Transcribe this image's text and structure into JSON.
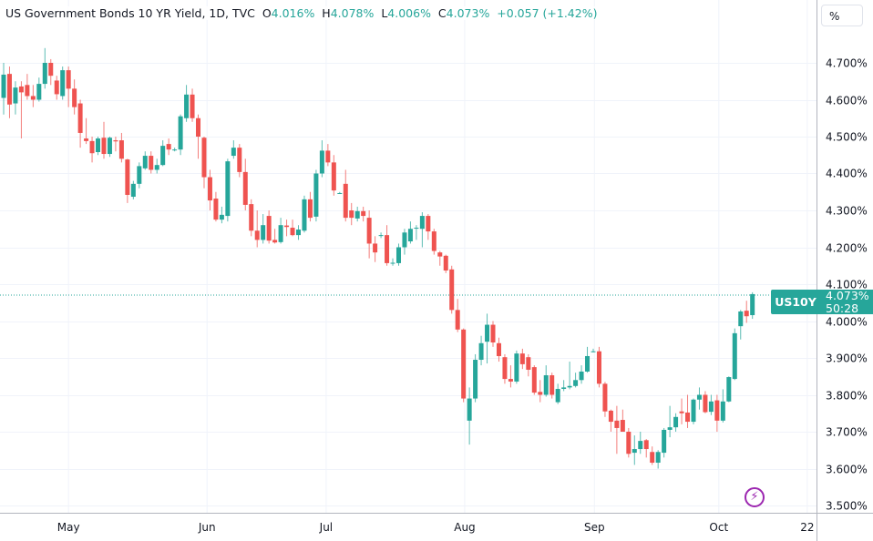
{
  "header": {
    "title": "US Government Bonds 10 YR Yield, 1D, TVC",
    "o_label": "O",
    "o_value": "4.016%",
    "h_label": "H",
    "h_value": "4.078%",
    "l_label": "L",
    "l_value": "4.006%",
    "c_label": "C",
    "c_value": "4.073%",
    "change": "+0.057 (+1.42%)"
  },
  "scale_button": "%",
  "last_price": {
    "symbol": "US10Y",
    "price": "4.073%",
    "countdown": "50:28",
    "value": 4.073
  },
  "colors": {
    "up": "#26a69a",
    "down": "#ef5350",
    "grid": "#f0f3fa",
    "text": "#131722",
    "alert": "#9c27b0"
  },
  "icons": {
    "alert": "lightning-icon"
  },
  "chart_data": {
    "type": "candlestick",
    "title": "US Government Bonds 10 YR Yield, 1D, TVC",
    "ylabel": "%",
    "ylim": [
      3.48,
      4.84
    ],
    "y_ticks": [
      "4.700%",
      "4.600%",
      "4.500%",
      "4.400%",
      "4.300%",
      "4.200%",
      "4.100%",
      "4.000%",
      "3.900%",
      "3.800%",
      "3.700%",
      "3.600%",
      "3.500%"
    ],
    "y_tick_values": [
      4.7,
      4.6,
      4.5,
      4.4,
      4.3,
      4.2,
      4.1,
      4.0,
      3.9,
      3.8,
      3.7,
      3.6,
      3.5
    ],
    "x_ticks": [
      {
        "label": "May",
        "index": 11
      },
      {
        "label": "Jun",
        "index": 34.5
      },
      {
        "label": "Jul",
        "index": 54.7
      },
      {
        "label": "Aug",
        "index": 78.2
      },
      {
        "label": "Sep",
        "index": 100.2
      },
      {
        "label": "Oct",
        "index": 121.3
      },
      {
        "label": "22",
        "index": 136.3
      }
    ],
    "grid": true,
    "ohlc": [
      [
        4.605,
        4.7,
        4.56,
        4.668
      ],
      [
        4.67,
        4.69,
        4.55,
        4.587
      ],
      [
        4.59,
        4.65,
        4.56,
        4.633
      ],
      [
        4.636,
        4.65,
        4.495,
        4.62
      ],
      [
        4.64,
        4.67,
        4.6,
        4.61
      ],
      [
        4.61,
        4.64,
        4.58,
        4.6
      ],
      [
        4.6,
        4.66,
        4.595,
        4.643
      ],
      [
        4.643,
        4.74,
        4.63,
        4.7
      ],
      [
        4.7,
        4.71,
        4.64,
        4.665
      ],
      [
        4.652,
        4.665,
        4.6,
        4.615
      ],
      [
        4.61,
        4.69,
        4.6,
        4.68
      ],
      [
        4.68,
        4.69,
        4.58,
        4.63
      ],
      [
        4.63,
        4.655,
        4.56,
        4.58
      ],
      [
        4.59,
        4.6,
        4.47,
        4.51
      ],
      [
        4.495,
        4.55,
        4.48,
        4.488
      ],
      [
        4.488,
        4.5,
        4.43,
        4.455
      ],
      [
        4.458,
        4.5,
        4.45,
        4.495
      ],
      [
        4.497,
        4.54,
        4.44,
        4.453
      ],
      [
        4.453,
        4.5,
        4.445,
        4.497
      ],
      [
        4.49,
        4.5,
        4.46,
        4.487
      ],
      [
        4.49,
        4.51,
        4.43,
        4.44
      ],
      [
        4.438,
        4.44,
        4.32,
        4.342
      ],
      [
        4.337,
        4.38,
        4.33,
        4.372
      ],
      [
        4.372,
        4.43,
        4.36,
        4.42
      ],
      [
        4.414,
        4.46,
        4.41,
        4.448
      ],
      [
        4.448,
        4.46,
        4.4,
        4.41
      ],
      [
        4.41,
        4.44,
        4.4,
        4.423
      ],
      [
        4.423,
        4.49,
        4.42,
        4.475
      ],
      [
        4.48,
        4.495,
        4.45,
        4.465
      ],
      [
        4.465,
        4.47,
        4.46,
        4.465
      ],
      [
        4.465,
        4.56,
        4.45,
        4.555
      ],
      [
        4.55,
        4.64,
        4.54,
        4.614
      ],
      [
        4.614,
        4.63,
        4.54,
        4.55
      ],
      [
        4.55,
        4.56,
        4.44,
        4.5
      ],
      [
        4.497,
        4.5,
        4.36,
        4.39
      ],
      [
        4.39,
        4.41,
        4.3,
        4.327
      ],
      [
        4.332,
        4.35,
        4.27,
        4.275
      ],
      [
        4.275,
        4.31,
        4.265,
        4.288
      ],
      [
        4.285,
        4.44,
        4.27,
        4.433
      ],
      [
        4.448,
        4.49,
        4.44,
        4.47
      ],
      [
        4.47,
        4.48,
        4.39,
        4.404
      ],
      [
        4.404,
        4.44,
        4.3,
        4.315
      ],
      [
        4.317,
        4.33,
        4.23,
        4.245
      ],
      [
        4.245,
        4.3,
        4.2,
        4.22
      ],
      [
        4.22,
        4.29,
        4.21,
        4.26
      ],
      [
        4.285,
        4.3,
        4.21,
        4.218
      ],
      [
        4.22,
        4.25,
        4.21,
        4.213
      ],
      [
        4.214,
        4.28,
        4.21,
        4.26
      ],
      [
        4.259,
        4.275,
        4.23,
        4.255
      ],
      [
        4.253,
        4.275,
        4.23,
        4.233
      ],
      [
        4.233,
        4.26,
        4.22,
        4.248
      ],
      [
        4.245,
        4.34,
        4.24,
        4.33
      ],
      [
        4.33,
        4.35,
        4.27,
        4.28
      ],
      [
        4.283,
        4.41,
        4.27,
        4.4
      ],
      [
        4.4,
        4.49,
        4.39,
        4.462
      ],
      [
        4.462,
        4.48,
        4.42,
        4.43
      ],
      [
        4.43,
        4.45,
        4.34,
        4.354
      ],
      [
        4.347,
        4.35,
        4.345,
        4.347
      ],
      [
        4.372,
        4.41,
        4.27,
        4.28
      ],
      [
        4.3,
        4.32,
        4.26,
        4.28
      ],
      [
        4.278,
        4.31,
        4.27,
        4.298
      ],
      [
        4.298,
        4.31,
        4.27,
        4.285
      ],
      [
        4.28,
        4.3,
        4.17,
        4.21
      ],
      [
        4.21,
        4.23,
        4.16,
        4.186
      ],
      [
        4.233,
        4.24,
        4.225,
        4.233
      ],
      [
        4.233,
        4.26,
        4.15,
        4.157
      ],
      [
        4.158,
        4.17,
        4.15,
        4.158
      ],
      [
        4.157,
        4.21,
        4.15,
        4.2
      ],
      [
        4.2,
        4.25,
        4.18,
        4.24
      ],
      [
        4.216,
        4.27,
        4.21,
        4.25
      ],
      [
        4.253,
        4.26,
        4.22,
        4.253
      ],
      [
        4.25,
        4.295,
        4.2,
        4.285
      ],
      [
        4.285,
        4.29,
        4.22,
        4.243
      ],
      [
        4.243,
        4.25,
        4.18,
        4.19
      ],
      [
        4.186,
        4.19,
        4.15,
        4.175
      ],
      [
        4.177,
        4.18,
        4.13,
        4.137
      ],
      [
        4.14,
        4.15,
        4.02,
        4.03
      ],
      [
        4.03,
        4.06,
        3.97,
        3.977
      ],
      [
        3.977,
        3.98,
        3.78,
        3.79
      ],
      [
        3.73,
        3.82,
        3.665,
        3.79
      ],
      [
        3.79,
        3.91,
        3.78,
        3.895
      ],
      [
        3.895,
        3.96,
        3.88,
        3.94
      ],
      [
        3.944,
        4.02,
        3.885,
        3.99
      ],
      [
        3.99,
        4.0,
        3.93,
        3.942
      ],
      [
        3.94,
        3.955,
        3.89,
        3.905
      ],
      [
        3.902,
        3.91,
        3.83,
        3.843
      ],
      [
        3.843,
        3.88,
        3.82,
        3.836
      ],
      [
        3.836,
        3.92,
        3.83,
        3.912
      ],
      [
        3.912,
        3.925,
        3.87,
        3.883
      ],
      [
        3.902,
        3.91,
        3.85,
        3.868
      ],
      [
        3.875,
        3.88,
        3.8,
        3.806
      ],
      [
        3.808,
        3.84,
        3.78,
        3.8
      ],
      [
        3.8,
        3.88,
        3.795,
        3.853
      ],
      [
        3.853,
        3.86,
        3.79,
        3.8
      ],
      [
        3.78,
        3.83,
        3.775,
        3.816
      ],
      [
        3.816,
        3.84,
        3.81,
        3.82
      ],
      [
        3.82,
        3.89,
        3.815,
        3.824
      ],
      [
        3.824,
        3.86,
        3.82,
        3.84
      ],
      [
        3.84,
        3.88,
        3.83,
        3.863
      ],
      [
        3.863,
        3.93,
        3.86,
        3.905
      ],
      [
        3.918,
        3.925,
        3.915,
        3.918
      ],
      [
        3.918,
        3.93,
        3.82,
        3.83
      ],
      [
        3.83,
        3.835,
        3.74,
        3.755
      ],
      [
        3.757,
        3.76,
        3.7,
        3.727
      ],
      [
        3.73,
        3.77,
        3.64,
        3.71
      ],
      [
        3.732,
        3.76,
        3.7,
        3.7
      ],
      [
        3.7,
        3.71,
        3.63,
        3.64
      ],
      [
        3.643,
        3.69,
        3.61,
        3.653
      ],
      [
        3.653,
        3.7,
        3.64,
        3.675
      ],
      [
        3.677,
        3.68,
        3.63,
        3.653
      ],
      [
        3.645,
        3.66,
        3.61,
        3.616
      ],
      [
        3.616,
        3.65,
        3.6,
        3.645
      ],
      [
        3.643,
        3.71,
        3.63,
        3.705
      ],
      [
        3.705,
        3.77,
        3.685,
        3.712
      ],
      [
        3.712,
        3.75,
        3.7,
        3.74
      ],
      [
        3.755,
        3.79,
        3.72,
        3.75
      ],
      [
        3.752,
        3.8,
        3.71,
        3.727
      ],
      [
        3.727,
        3.79,
        3.72,
        3.787
      ],
      [
        3.787,
        3.82,
        3.76,
        3.8
      ],
      [
        3.8,
        3.81,
        3.75,
        3.753
      ],
      [
        3.754,
        3.8,
        3.745,
        3.782
      ],
      [
        3.785,
        3.8,
        3.7,
        3.73
      ],
      [
        3.73,
        3.815,
        3.725,
        3.782
      ],
      [
        3.782,
        3.85,
        3.78,
        3.848
      ],
      [
        3.843,
        3.98,
        3.84,
        3.967
      ],
      [
        3.986,
        4.03,
        3.95,
        4.026
      ],
      [
        4.028,
        4.055,
        3.995,
        4.013
      ],
      [
        4.016,
        4.078,
        4.006,
        4.073
      ]
    ]
  }
}
